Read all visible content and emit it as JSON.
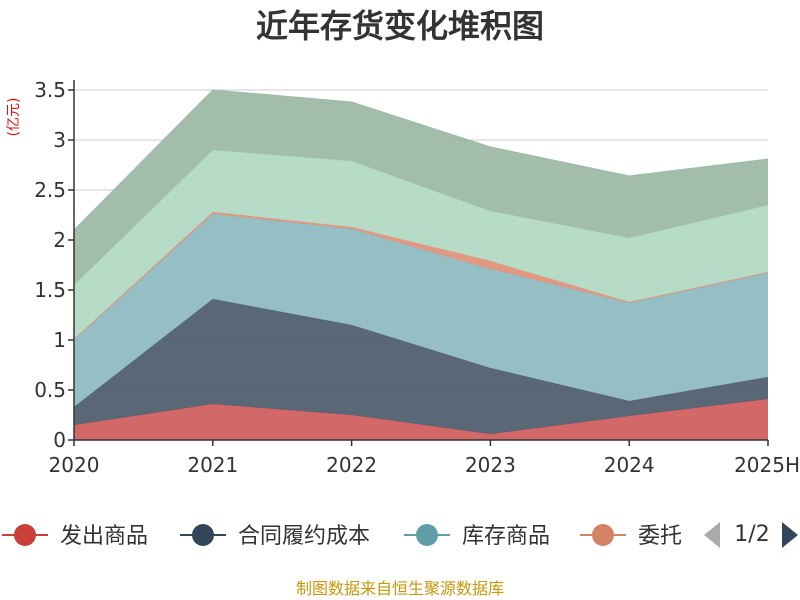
{
  "chart_data": {
    "type": "area",
    "stacked": true,
    "title": "近年存货变化堆积图",
    "unit_label": "亿元",
    "categories": [
      "2020",
      "2021",
      "2022",
      "2023",
      "2024",
      "2025H"
    ],
    "ylim": [
      0,
      3.5
    ],
    "yticks": [
      "0",
      "0.5",
      "1",
      "1.5",
      "2",
      "2.5",
      "3",
      "3.5"
    ],
    "grid": true,
    "series": [
      {
        "name": "发出商品",
        "color": "#d06060",
        "values": [
          0.15,
          0.36,
          0.25,
          0.06,
          0.24,
          0.41
        ]
      },
      {
        "name": "合同履约成本",
        "color": "#505f70",
        "values": [
          0.18,
          1.05,
          0.9,
          0.66,
          0.15,
          0.22
        ]
      },
      {
        "name": "库存商品",
        "color": "#8fbcc2",
        "values": [
          0.67,
          0.85,
          0.96,
          0.99,
          0.98,
          1.04
        ]
      },
      {
        "name": "委托加工物资",
        "color": "#e2947a",
        "values": [
          0.01,
          0.02,
          0.02,
          0.08,
          0.01,
          0.01
        ]
      },
      {
        "name": "",
        "color": "#b2d9c4",
        "values": [
          0.54,
          0.62,
          0.66,
          0.5,
          0.64,
          0.67
        ]
      },
      {
        "name": "",
        "color": "#9dbba7",
        "values": [
          0.55,
          0.6,
          0.59,
          0.64,
          0.62,
          0.46
        ]
      }
    ],
    "legend": {
      "position": "bottom",
      "visible_items": [
        "发出商品",
        "合同履约成本",
        "库存商品",
        "委托"
      ],
      "item_colors": [
        "#c9403a",
        "#32465a",
        "#5f9ea6",
        "#d48465"
      ],
      "page": "1/2"
    }
  },
  "footer": {
    "source": "制图数据来自恒生聚源数据库"
  }
}
